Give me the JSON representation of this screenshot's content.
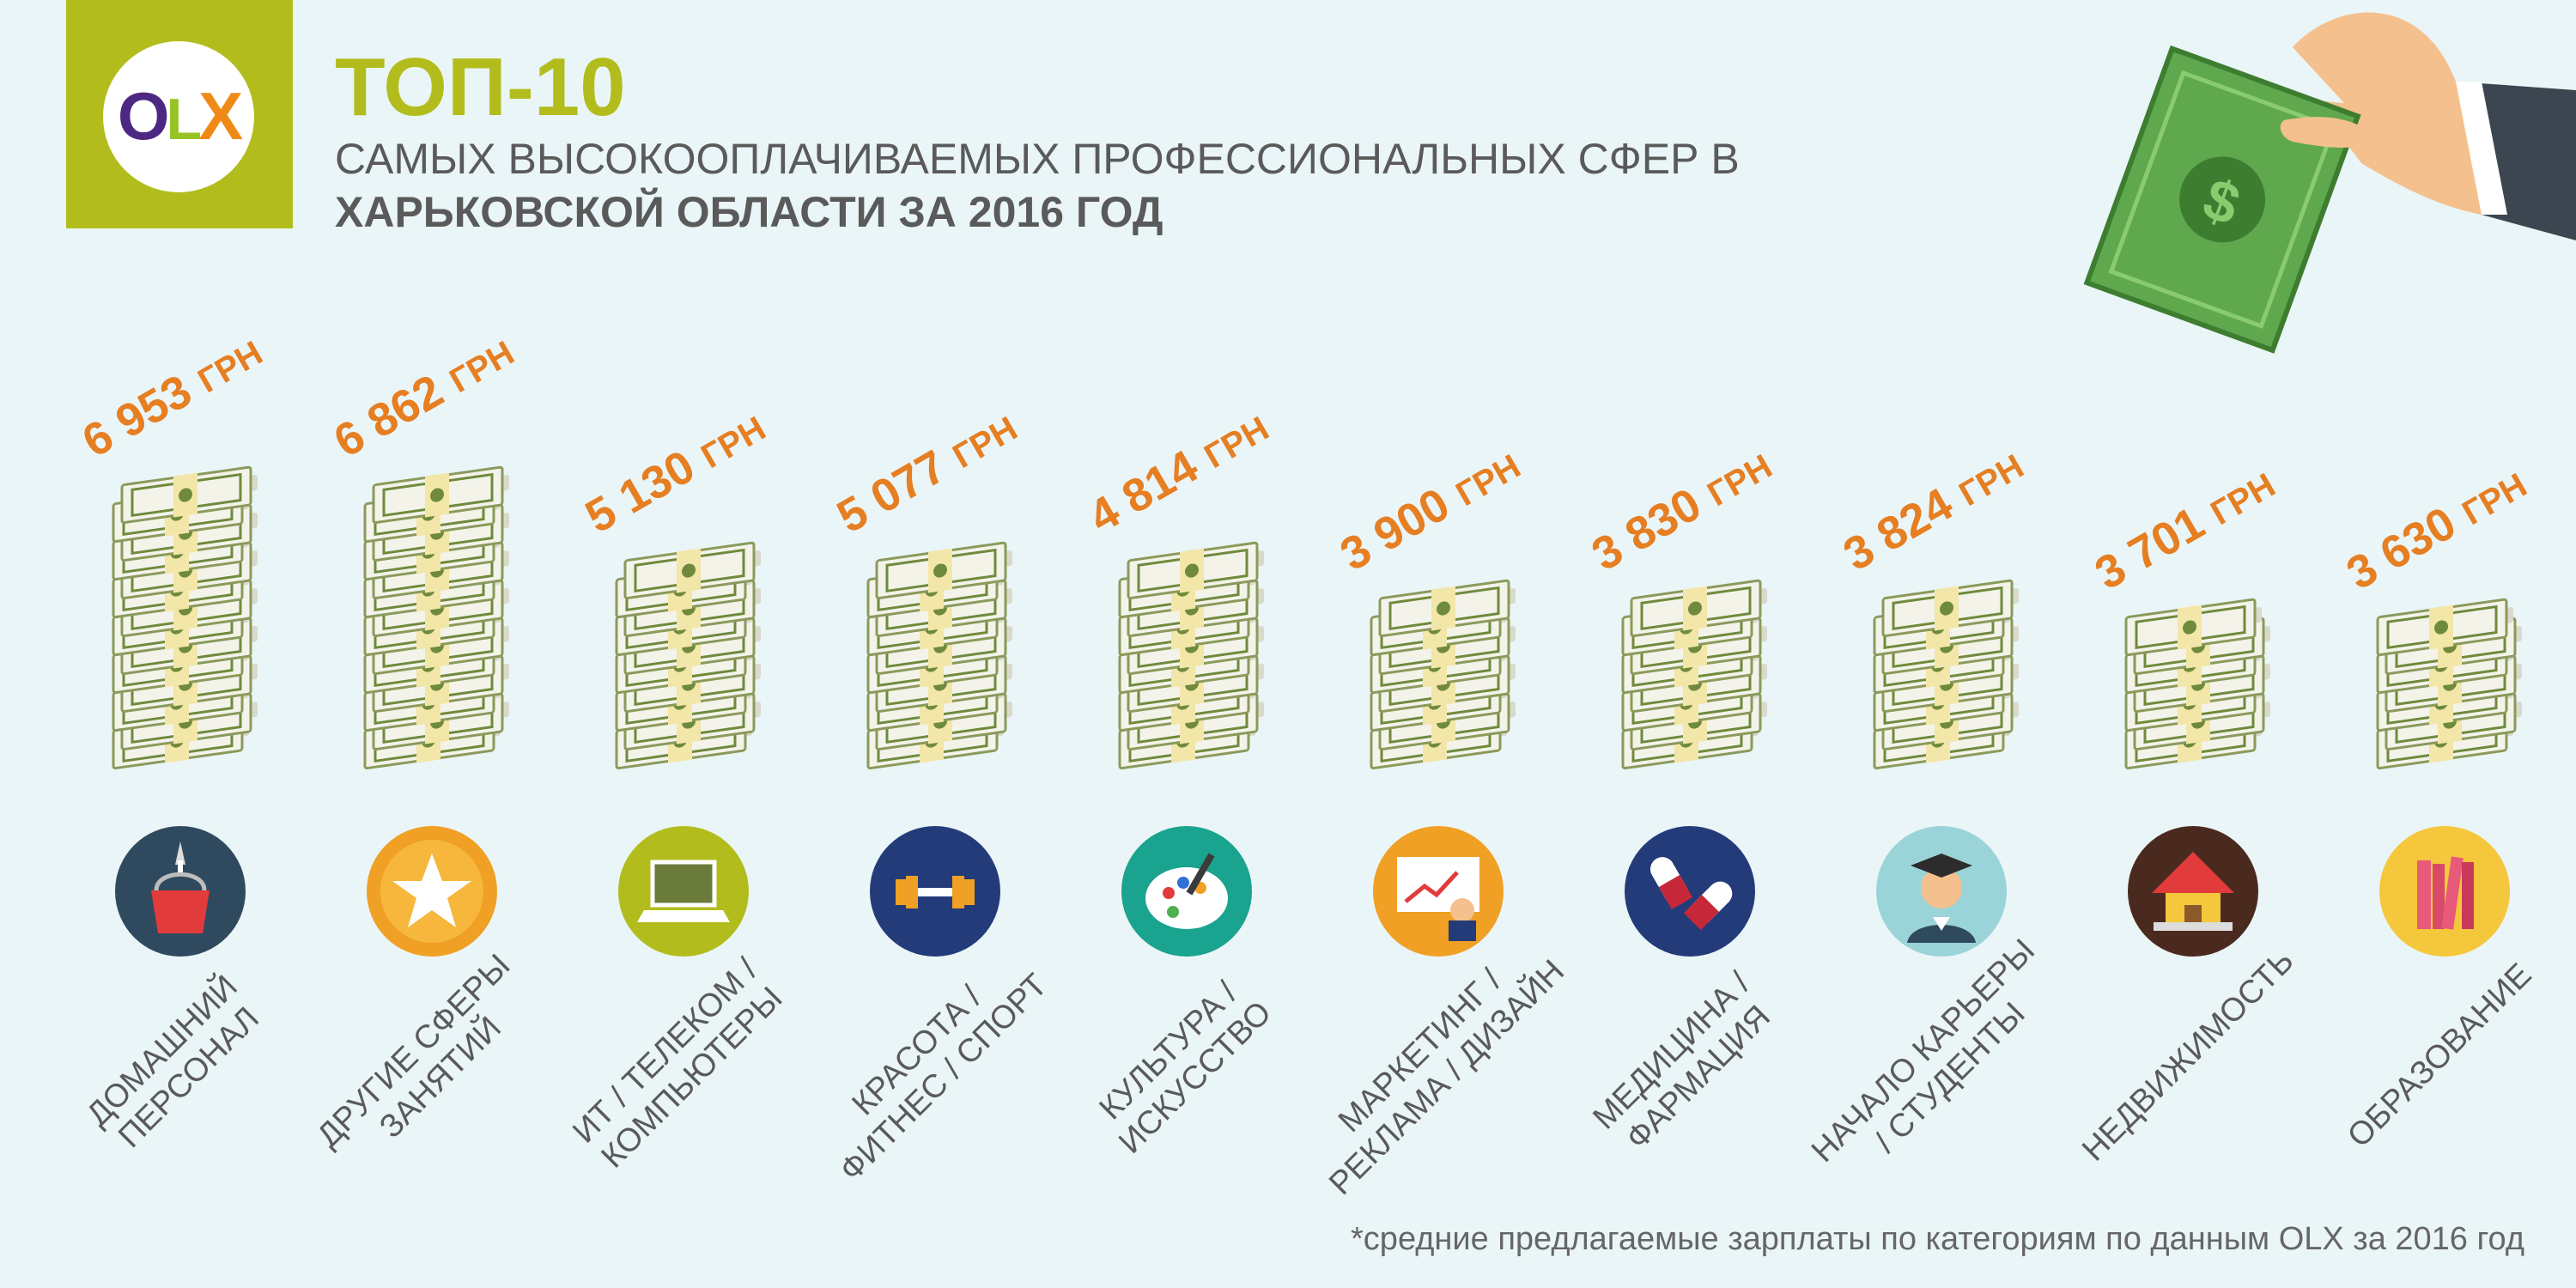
{
  "header": {
    "title": "ТОП-10",
    "subtitle_line1": "САМЫХ ВЫСОКООПЛАЧИВАЕМЫХ ПРОФЕССИОНАЛЬНЫХ СФЕР В",
    "subtitle_line2": "ХАРЬКОВСКОЙ ОБЛАСТИ ЗА 2016 ГОД"
  },
  "logo": {
    "text": "OLX",
    "letters": [
      "O",
      "L",
      "X"
    ]
  },
  "footnote": "*средние предлагаемые зарплаты по категориям по данным OLX за 2016 год",
  "colors": {
    "accent_green": "#b2bd1d",
    "value_orange": "#e67e22",
    "text_gray": "#5a5a5a",
    "background": "#eaf5f7"
  },
  "chart_data": {
    "type": "bar",
    "title": "ТОП-10",
    "unit": "ГРН",
    "categories": [
      "ДОМАШНИЙ ПЕРСОНАЛ",
      "ДРУГИЕ СФЕРЫ ЗАНЯТИЙ",
      "ИТ / ТЕЛЕКОМ / КОМПЬЮТЕРЫ",
      "КРАСОТА / ФИТНЕС / СПОРТ",
      "КУЛЬТУРА / ИСКУССТВО",
      "МАРКЕТИНГ / РЕКЛАМА / ДИЗАЙН",
      "МЕДИЦИНА / ФАРМАЦИЯ",
      "НАЧАЛО КАРЬЕРЫ / СТУДЕНТЫ",
      "НЕДВИЖИМОСТЬ",
      "ОБРАЗОВАНИЕ"
    ],
    "category_lines": [
      [
        "ДОМАШНИЙ",
        "ПЕРСОНАЛ"
      ],
      [
        "ДРУГИЕ СФЕРЫ",
        "ЗАНЯТИЙ"
      ],
      [
        "ИТ / ТЕЛЕКОМ /",
        "КОМПЬЮТЕРЫ"
      ],
      [
        "КРАСОТА /",
        "ФИТНЕС / СПОРТ"
      ],
      [
        "КУЛЬТУРА /",
        "ИСКУССТВО"
      ],
      [
        "МАРКЕТИНГ /",
        "РЕКЛАМА / ДИЗАЙН"
      ],
      [
        "МЕДИЦИНА /",
        "ФАРМАЦИЯ"
      ],
      [
        "НАЧАЛО КАРЬЕРЫ",
        "/ СТУДЕНТЫ"
      ],
      [
        "НЕДВИЖИМОСТЬ"
      ],
      [
        "ОБРАЗОВАНИЕ"
      ]
    ],
    "values": [
      6953,
      6862,
      5130,
      5077,
      4814,
      3900,
      3830,
      3824,
      3701,
      3630
    ],
    "value_labels": [
      "6 953",
      "6 862",
      "5 130",
      "5 077",
      "4 814",
      "3 900",
      "3 830",
      "3 824",
      "3 701",
      "3 630"
    ],
    "icons": [
      "bucket-icon",
      "star-icon",
      "laptop-icon",
      "dumbbell-icon",
      "palette-icon",
      "presentation-icon",
      "pills-icon",
      "graduate-icon",
      "house-icon",
      "books-icon"
    ],
    "icon_colors": [
      "#2f4a5e",
      "#f0a024",
      "#b2bd1d",
      "#243b7a",
      "#1aa38f",
      "#f0a024",
      "#243b7a",
      "#9ad4d8",
      "#4a2a1e",
      "#f5c73c"
    ]
  }
}
